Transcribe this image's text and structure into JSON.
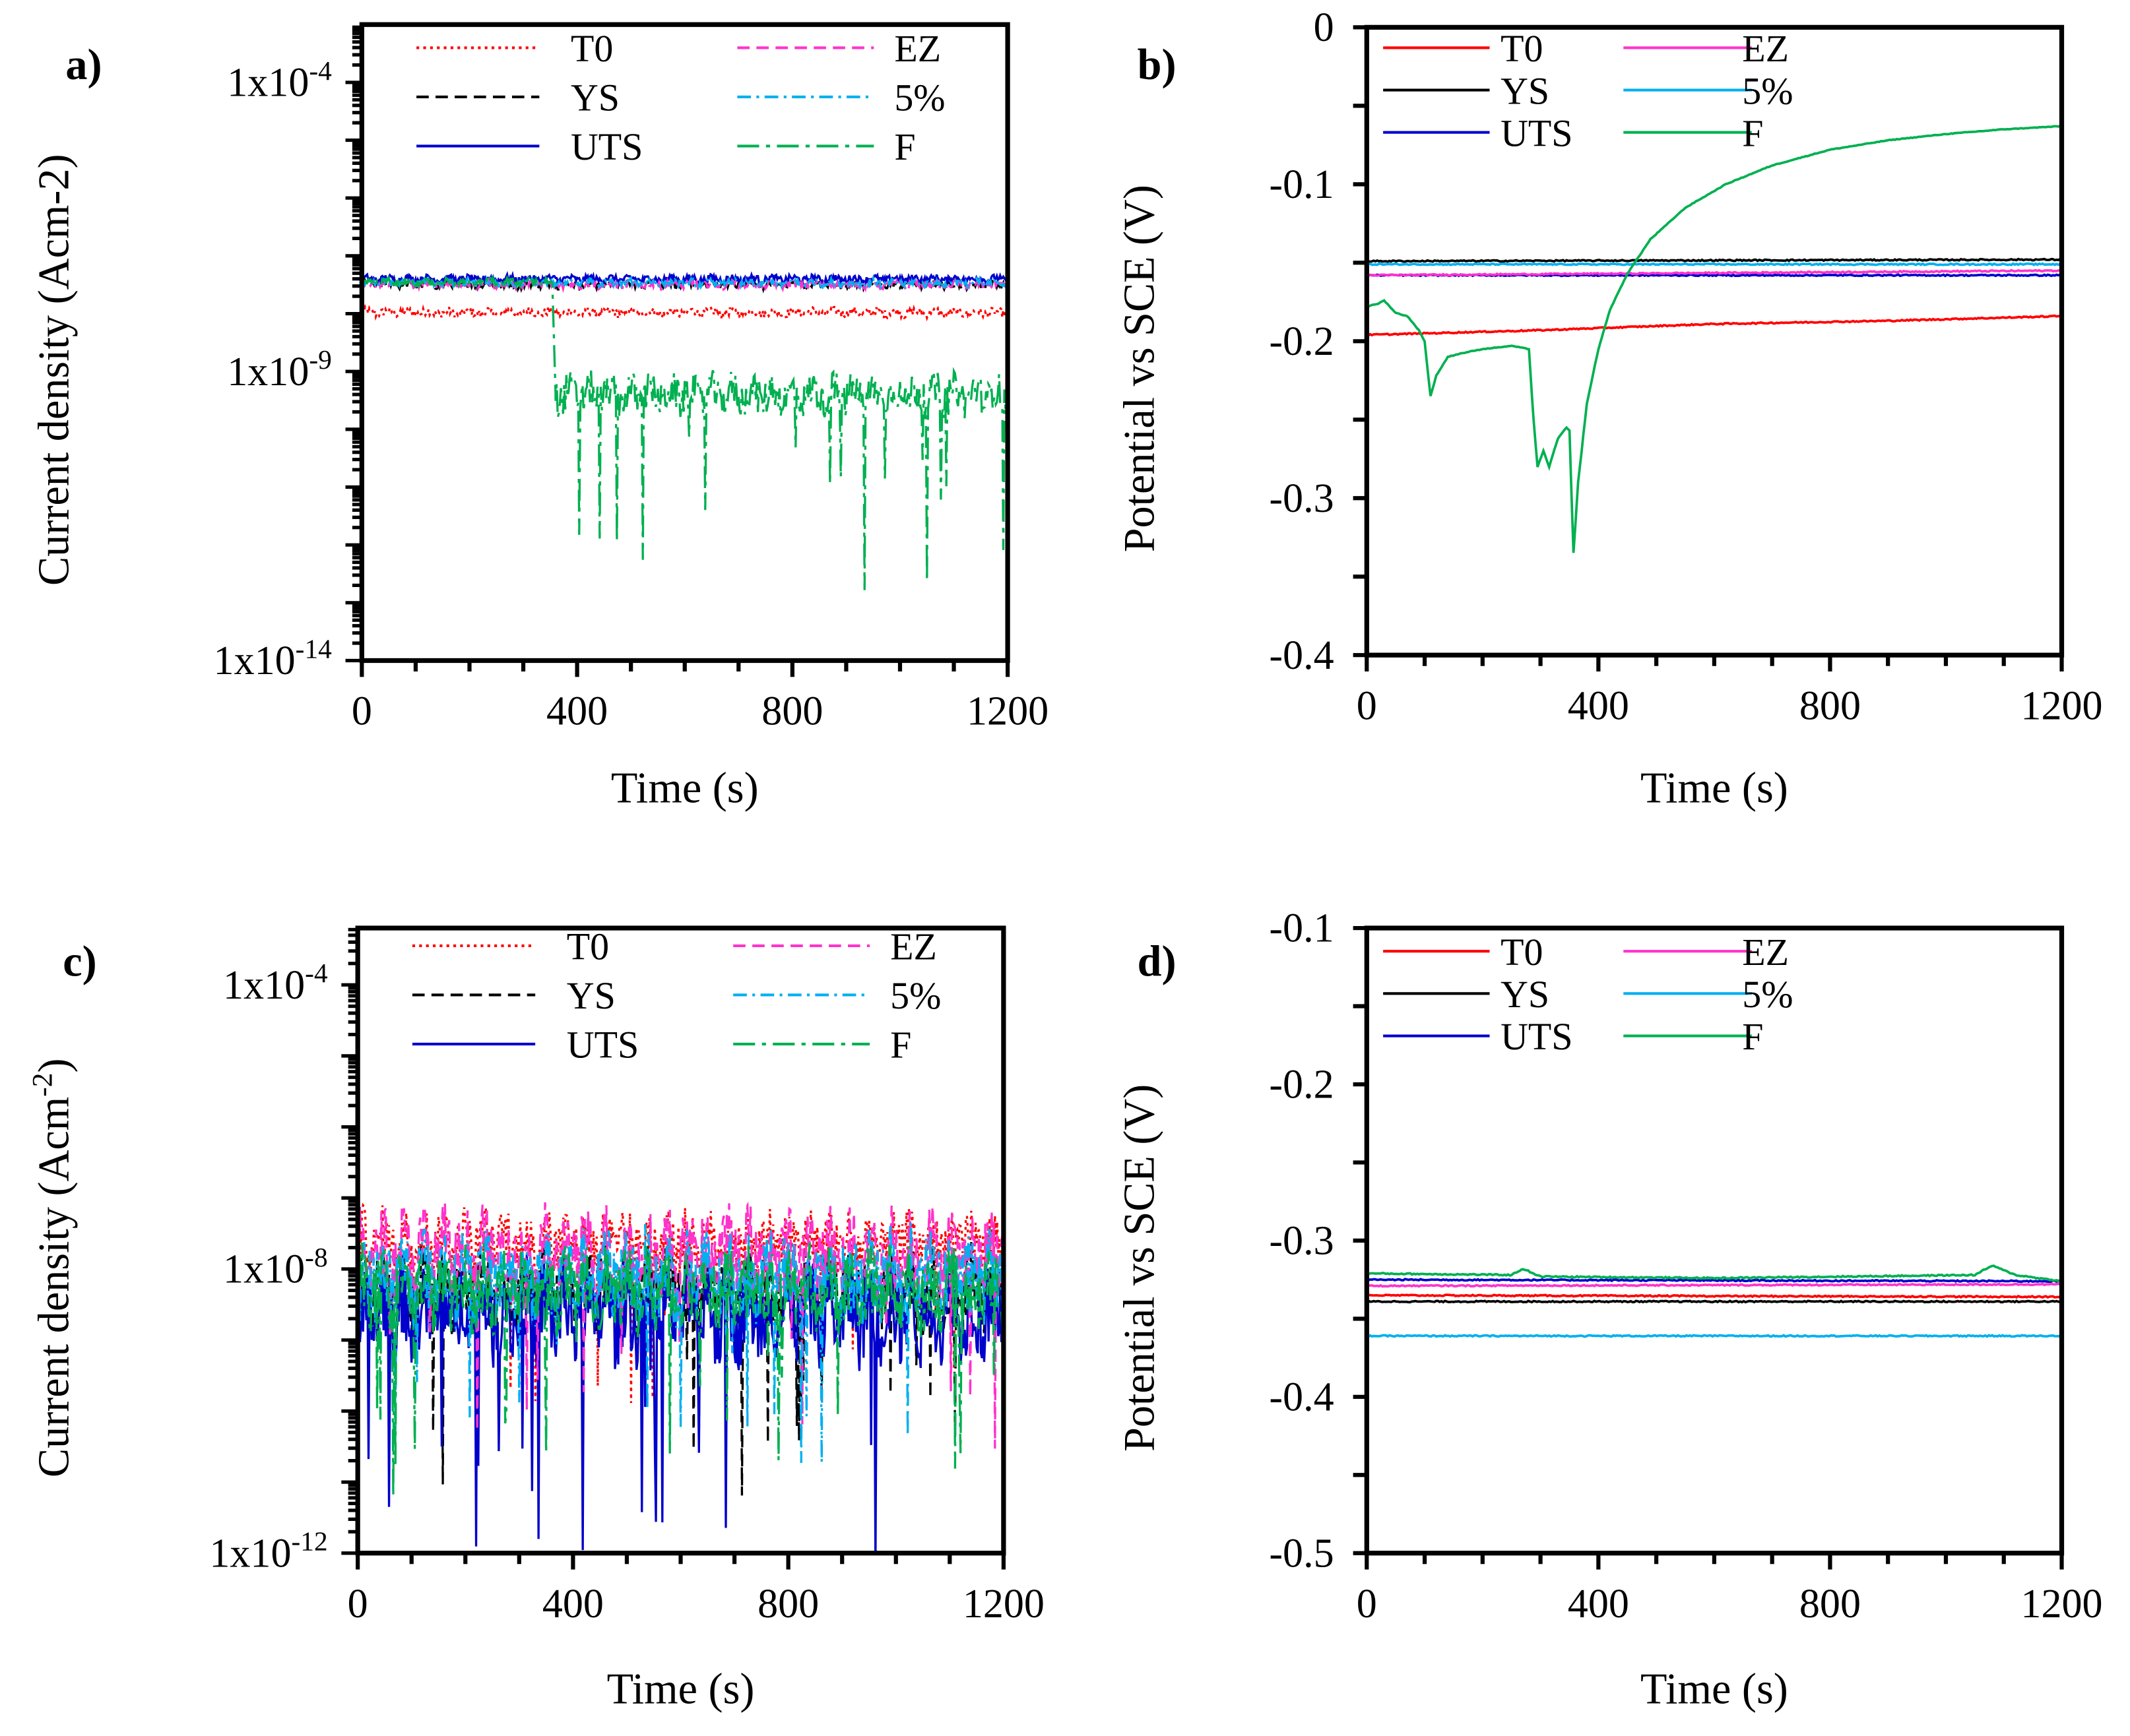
{
  "chart_data": [
    {
      "panel": "a)",
      "type": "line",
      "yscale": "log",
      "xlabel": "Time (s)",
      "ylabel": "Current density (Acm-2)",
      "xlim": [
        0,
        1200
      ],
      "xticks": [
        "0",
        "400",
        "800",
        "1200"
      ],
      "xtick_values": [
        0,
        400,
        800,
        1200
      ],
      "ylim_log10": [
        -14,
        -3
      ],
      "yticks": [
        {
          "base": "1x10",
          "exp": "-4",
          "log10": -4
        },
        {
          "base": "1x10",
          "exp": "-9",
          "log10": -9
        },
        {
          "base": "1x10",
          "exp": "-14",
          "log10": -14
        }
      ],
      "legend_position": "top",
      "series": [
        {
          "name": "T0",
          "color": "#ff0000",
          "dash": "dot",
          "segments": [
            {
              "from": 0,
              "to": 1200,
              "log10_level": -7.98,
              "spread": 0.12
            }
          ]
        },
        {
          "name": "YS",
          "color": "#000000",
          "dash": "dash",
          "segments": [
            {
              "from": 0,
              "to": 1200,
              "log10_level": -7.5,
              "spread": 0.1
            }
          ]
        },
        {
          "name": "UTS",
          "color": "#0000cc",
          "dash": "solid",
          "segments": [
            {
              "from": 0,
              "to": 1200,
              "log10_level": -7.4,
              "spread": 0.1
            }
          ]
        },
        {
          "name": "EZ",
          "color": "#ff33cc",
          "dash": "dash",
          "segments": [
            {
              "from": 0,
              "to": 1200,
              "log10_level": -7.5,
              "spread": 0.1
            }
          ]
        },
        {
          "name": "5%",
          "color": "#00b0f0",
          "dash": "dashdot",
          "segments": [
            {
              "from": 0,
              "to": 1200,
              "log10_level": -7.47,
              "spread": 0.1
            }
          ]
        },
        {
          "name": "F",
          "color": "#00b050",
          "dash": "longdashdot",
          "segments": [
            {
              "from": 0,
              "to": 355,
              "log10_level": -7.45,
              "spread": 0.1
            },
            {
              "from": 360,
              "to": 1200,
              "log10_level": -9.4,
              "spread": 0.5,
              "deepest_log10": -12.9
            }
          ]
        }
      ]
    },
    {
      "panel": "b)",
      "type": "line",
      "yscale": "linear",
      "xlabel": "Time (s)",
      "ylabel": "Potential vs SCE (V)",
      "xlim": [
        0,
        1200
      ],
      "xticks": [
        "0",
        "400",
        "800",
        "1200"
      ],
      "xtick_values": [
        0,
        400,
        800,
        1200
      ],
      "ylim": [
        -0.4,
        0
      ],
      "yticks": [
        {
          "label": "0",
          "value": 0
        },
        {
          "label": "-0.1",
          "value": -0.1
        },
        {
          "label": "-0.2",
          "value": -0.2
        },
        {
          "label": "-0.3",
          "value": -0.3
        },
        {
          "label": "-0.4",
          "value": -0.4
        }
      ],
      "legend_position": "top",
      "series": [
        {
          "name": "T0",
          "color": "#ff0000",
          "dash": "solid",
          "x": [
            0,
            300,
            600,
            900,
            1200
          ],
          "y": [
            -0.196,
            -0.193,
            -0.189,
            -0.187,
            -0.184
          ]
        },
        {
          "name": "YS",
          "color": "#000000",
          "dash": "solid",
          "x": [
            0,
            1200
          ],
          "y": [
            -0.149,
            -0.148
          ]
        },
        {
          "name": "UTS",
          "color": "#0000cc",
          "dash": "solid",
          "x": [
            0,
            1200
          ],
          "y": [
            -0.158,
            -0.158
          ]
        },
        {
          "name": "EZ",
          "color": "#ff33cc",
          "dash": "solid",
          "x": [
            0,
            1200
          ],
          "y": [
            -0.158,
            -0.155
          ]
        },
        {
          "name": "5%",
          "color": "#00b0f0",
          "dash": "solid",
          "x": [
            0,
            1200
          ],
          "y": [
            -0.151,
            -0.151
          ]
        },
        {
          "name": "F",
          "color": "#00b050",
          "dash": "solid",
          "x": [
            0,
            20,
            30,
            50,
            70,
            90,
            100,
            110,
            120,
            140,
            160,
            200,
            250,
            280,
            288,
            295,
            305,
            315,
            330,
            345,
            350,
            357,
            365,
            380,
            400,
            420,
            450,
            490,
            550,
            620,
            700,
            800,
            900,
            1000,
            1100,
            1200
          ],
          "y": [
            -0.178,
            -0.176,
            -0.174,
            -0.182,
            -0.184,
            -0.193,
            -0.2,
            -0.235,
            -0.222,
            -0.21,
            -0.208,
            -0.205,
            -0.203,
            -0.205,
            -0.25,
            -0.28,
            -0.27,
            -0.28,
            -0.262,
            -0.255,
            -0.257,
            -0.335,
            -0.29,
            -0.24,
            -0.205,
            -0.18,
            -0.157,
            -0.135,
            -0.115,
            -0.1,
            -0.088,
            -0.078,
            -0.072,
            -0.068,
            -0.065,
            -0.063
          ]
        }
      ]
    },
    {
      "panel": "c)",
      "type": "line",
      "yscale": "log",
      "xlabel": "Time (s)",
      "ylabel": {
        "text": "Current density (Acm",
        "sup": "-2",
        "close": ")"
      },
      "xlim": [
        0,
        1200
      ],
      "xticks": [
        "0",
        "400",
        "800",
        "1200"
      ],
      "xtick_values": [
        0,
        400,
        800,
        1200
      ],
      "ylim_log10": [
        -12,
        -3.2
      ],
      "yticks": [
        {
          "base": "1x10",
          "exp": "-4",
          "log10": -4
        },
        {
          "base": "1x10",
          "exp": "-8",
          "log10": -8
        },
        {
          "base": "1x10",
          "exp": "-12",
          "log10": -12
        }
      ],
      "legend_position": "top",
      "series": [
        {
          "name": "T0",
          "color": "#ff0000",
          "dash": "dot",
          "segments": [
            {
              "from": 0,
              "to": 1200,
              "log10_level": -7.6,
              "spread": 0.6
            }
          ]
        },
        {
          "name": "YS",
          "color": "#000000",
          "dash": "dash",
          "segments": [
            {
              "from": 0,
              "to": 1200,
              "log10_level": -8.3,
              "spread": 0.8
            }
          ]
        },
        {
          "name": "UTS",
          "color": "#0000cc",
          "dash": "solid",
          "segments": [
            {
              "from": 0,
              "to": 1200,
              "log10_level": -8.6,
              "spread": 1.0,
              "deepest_log10": -12
            }
          ]
        },
        {
          "name": "EZ",
          "color": "#ff33cc",
          "dash": "dash",
          "segments": [
            {
              "from": 0,
              "to": 1200,
              "log10_level": -7.8,
              "spread": 0.9
            }
          ]
        },
        {
          "name": "5%",
          "color": "#00b0f0",
          "dash": "dashdot",
          "segments": [
            {
              "from": 0,
              "to": 1200,
              "log10_level": -8.1,
              "spread": 0.9
            }
          ]
        },
        {
          "name": "F",
          "color": "#00b050",
          "dash": "longdashdot",
          "segments": [
            {
              "from": 0,
              "to": 1200,
              "log10_level": -8.3,
              "spread": 0.8
            }
          ]
        }
      ]
    },
    {
      "panel": "d)",
      "type": "line",
      "yscale": "linear",
      "xlabel": "Time (s)",
      "ylabel": "Potential vs SCE (V)",
      "xlim": [
        0,
        1200
      ],
      "xticks": [
        "0",
        "400",
        "800",
        "1200"
      ],
      "xtick_values": [
        0,
        400,
        800,
        1200
      ],
      "ylim": [
        -0.5,
        -0.1
      ],
      "yticks": [
        {
          "label": "-0.1",
          "value": -0.1
        },
        {
          "label": "-0.2",
          "value": -0.2
        },
        {
          "label": "-0.3",
          "value": -0.3
        },
        {
          "label": "-0.4",
          "value": -0.4
        },
        {
          "label": "-0.5",
          "value": -0.5
        }
      ],
      "legend_position": "top",
      "series": [
        {
          "name": "T0",
          "color": "#ff0000",
          "dash": "solid",
          "x": [
            0,
            1200
          ],
          "y": [
            -0.335,
            -0.336
          ]
        },
        {
          "name": "YS",
          "color": "#000000",
          "dash": "solid",
          "x": [
            0,
            1200
          ],
          "y": [
            -0.339,
            -0.339
          ]
        },
        {
          "name": "UTS",
          "color": "#0000cc",
          "dash": "solid",
          "x": [
            0,
            1200
          ],
          "y": [
            -0.325,
            -0.326
          ]
        },
        {
          "name": "EZ",
          "color": "#ff33cc",
          "dash": "solid",
          "x": [
            0,
            1200
          ],
          "y": [
            -0.329,
            -0.328
          ]
        },
        {
          "name": "5%",
          "color": "#00b0f0",
          "dash": "solid",
          "x": [
            0,
            1200
          ],
          "y": [
            -0.361,
            -0.361
          ]
        },
        {
          "name": "F",
          "color": "#00b050",
          "dash": "solid",
          "x": [
            0,
            250,
            270,
            300,
            600,
            1050,
            1080,
            1120,
            1200
          ],
          "y": [
            -0.321,
            -0.322,
            -0.318,
            -0.323,
            -0.324,
            -0.322,
            -0.316,
            -0.322,
            -0.326
          ]
        }
      ]
    }
  ]
}
